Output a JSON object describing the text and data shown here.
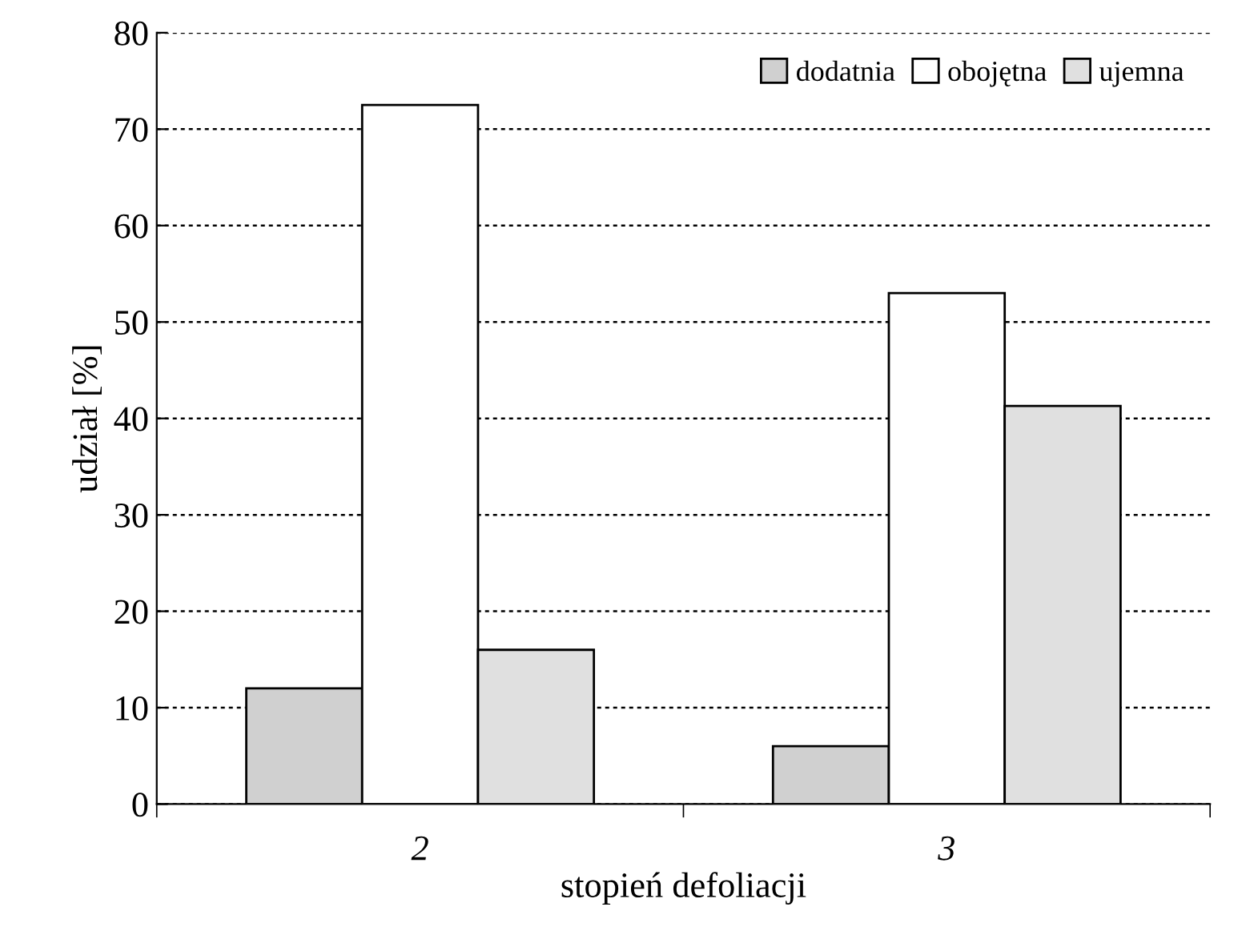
{
  "chart_data": {
    "type": "bar",
    "xlabel": "stopień defoliacji",
    "ylabel": "udział [%]",
    "categories": [
      "2",
      "3"
    ],
    "series": [
      {
        "name": "dodatnia",
        "color": "#d0d0d0",
        "values": [
          12,
          6
        ]
      },
      {
        "name": "obojętna",
        "color": "#ffffff",
        "values": [
          72.5,
          53
        ]
      },
      {
        "name": "ujemna",
        "color": "#e0e0e0",
        "values": [
          16,
          41.3
        ]
      }
    ],
    "ylim": [
      0,
      80
    ],
    "yticks": [
      0,
      10,
      20,
      30,
      40,
      50,
      60,
      70,
      80
    ],
    "grid": "y",
    "legend": "top right"
  }
}
